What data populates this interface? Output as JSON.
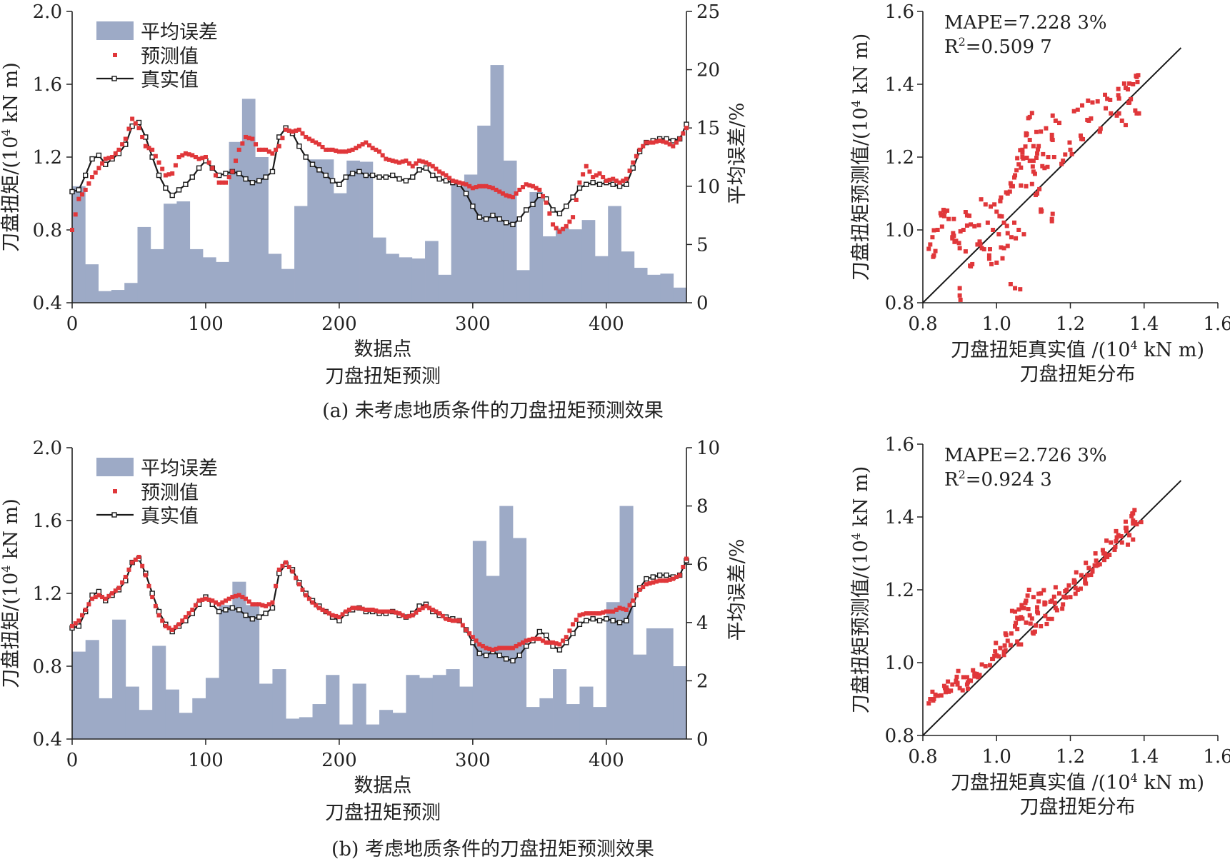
{
  "figure": {
    "caption_a": "(a) 未考虑地质条件的刀盘扭矩预测效果",
    "caption_b": "(b) 考虑地质条件的刀盘扭矩预测效果"
  },
  "colors": {
    "bar": "#9daac6",
    "pred": "#e0373a",
    "true_line": "#1a1a1a",
    "axis": "#222222"
  },
  "chart_data": [
    {
      "panel": "a-left",
      "type": "bar+line+scatter",
      "subtitle": "刀盘扭矩预测",
      "xlabel": "数据点",
      "ylabel": "刀盘扭矩/(10⁴ kN m)",
      "y2label": "平均误差/%",
      "xlim": [
        0,
        460
      ],
      "ylim": [
        0.4,
        2.0
      ],
      "y2lim": [
        0,
        25
      ],
      "xticks": [
        "0",
        "100",
        "200",
        "300",
        "400"
      ],
      "yticks": [
        "0.4",
        "0.8",
        "1.2",
        "1.6",
        "2.0"
      ],
      "y2ticks": [
        "0",
        "5",
        "10",
        "15",
        "20",
        "25"
      ],
      "legend": [
        "平均误差",
        "预测值",
        "真实值"
      ],
      "legend_position": "top-left",
      "bars_error_pct": [
        10,
        3.3,
        1,
        1.1,
        1.7,
        6.5,
        4.6,
        8.5,
        8.7,
        4.6,
        3.9,
        3.5,
        13.8,
        17.5,
        12.5,
        4.2,
        2.9,
        8.3,
        12.3,
        12.3,
        9.4,
        12.2,
        12.1,
        5.6,
        4.2,
        3.9,
        3.8,
        5.3,
        2.4,
        10.2,
        11,
        15.2,
        20.4,
        12.2,
        2.8,
        9.5,
        5.7,
        6.4,
        6.3,
        7.1,
        4,
        8.3,
        4.4,
        3,
        2.4,
        2.5,
        1.3
      ],
      "x": [
        0,
        5,
        10,
        15,
        20,
        25,
        30,
        35,
        40,
        45,
        50,
        55,
        60,
        65,
        70,
        75,
        80,
        85,
        90,
        95,
        100,
        105,
        110,
        115,
        120,
        125,
        130,
        135,
        140,
        145,
        150,
        155,
        160,
        165,
        170,
        175,
        180,
        185,
        190,
        195,
        200,
        205,
        210,
        215,
        220,
        225,
        230,
        235,
        240,
        245,
        250,
        255,
        260,
        265,
        270,
        275,
        280,
        285,
        290,
        295,
        300,
        305,
        310,
        315,
        320,
        325,
        330,
        335,
        340,
        345,
        350,
        355,
        360,
        365,
        370,
        375,
        380,
        385,
        390,
        395,
        400,
        405,
        410,
        415,
        420,
        425,
        430,
        435,
        440,
        445,
        450,
        455,
        460
      ],
      "true": [
        1.01,
        1.02,
        1.1,
        1.19,
        1.21,
        1.16,
        1.19,
        1.22,
        1.27,
        1.37,
        1.39,
        1.31,
        1.2,
        1.1,
        1.03,
        0.99,
        1.02,
        1.05,
        1.09,
        1.14,
        1.18,
        1.14,
        1.1,
        1.11,
        1.12,
        1.11,
        1.08,
        1.06,
        1.07,
        1.09,
        1.12,
        1.31,
        1.36,
        1.33,
        1.26,
        1.2,
        1.16,
        1.13,
        1.1,
        1.07,
        1.05,
        1.09,
        1.11,
        1.12,
        1.1,
        1.1,
        1.09,
        1.09,
        1.1,
        1.08,
        1.07,
        1.09,
        1.13,
        1.14,
        1.1,
        1.08,
        1.07,
        1.06,
        1.05,
        1.0,
        0.93,
        0.87,
        0.86,
        0.88,
        0.86,
        0.84,
        0.83,
        0.86,
        0.91,
        0.94,
        0.99,
        0.97,
        0.91,
        0.89,
        0.93,
        0.98,
        1.03,
        1.05,
        1.06,
        1.05,
        1.06,
        1.05,
        1.04,
        1.05,
        1.14,
        1.23,
        1.28,
        1.29,
        1.3,
        1.3,
        1.29,
        1.3,
        1.38
      ],
      "pred": [
        0.8,
        0.97,
        1.02,
        1.09,
        1.14,
        1.19,
        1.2,
        1.24,
        1.3,
        1.41,
        1.36,
        1.26,
        1.24,
        1.17,
        1.1,
        1.11,
        1.2,
        1.22,
        1.21,
        1.19,
        1.2,
        1.14,
        1.06,
        1.06,
        1.12,
        1.24,
        1.31,
        1.3,
        1.24,
        1.24,
        1.22,
        1.26,
        1.35,
        1.34,
        1.35,
        1.31,
        1.29,
        1.27,
        1.24,
        1.24,
        1.23,
        1.23,
        1.24,
        1.26,
        1.28,
        1.25,
        1.23,
        1.19,
        1.18,
        1.17,
        1.18,
        1.15,
        1.18,
        1.17,
        1.15,
        1.12,
        1.1,
        1.07,
        1.06,
        1.05,
        1.03,
        1.04,
        1.04,
        1.03,
        1.01,
        0.99,
        0.98,
        1.02,
        1.05,
        1.04,
        1.02,
        0.95,
        0.83,
        0.79,
        0.82,
        0.87,
        1.06,
        1.15,
        1.09,
        1.11,
        1.07,
        1.08,
        1.06,
        1.08,
        1.17,
        1.24,
        1.28,
        1.28,
        1.29,
        1.28,
        1.26,
        1.3,
        1.36
      ]
    },
    {
      "panel": "a-right",
      "type": "scatter",
      "subtitle": "刀盘扭矩分布",
      "xlabel": "刀盘扭矩真实值 /(10⁴ kN m)",
      "ylabel": "刀盘扭矩预测值/(10⁴ kN m)",
      "xlim": [
        0.8,
        1.6
      ],
      "ylim": [
        0.8,
        1.6
      ],
      "xticks": [
        "0.8",
        "1.0",
        "1.2",
        "1.4",
        "1.6"
      ],
      "yticks": [
        "0.8",
        "1.0",
        "1.2",
        "1.4",
        "1.6"
      ],
      "mape": "MAPE=7.228 3%",
      "r2_prefix": "R",
      "r2_sup": "2",
      "r2_value": "=0.509 7",
      "reference_line": [
        [
          0.8,
          0.8
        ],
        [
          1.5,
          1.5
        ]
      ],
      "points": [
        [
          0.82,
          0.96
        ],
        [
          0.83,
          0.93
        ],
        [
          0.84,
          1.0
        ],
        [
          0.85,
          1.04
        ],
        [
          0.86,
          1.05
        ],
        [
          0.87,
          1.03
        ],
        [
          0.88,
          0.98
        ],
        [
          0.89,
          0.97
        ],
        [
          0.9,
          0.95
        ],
        [
          0.9,
          0.82
        ],
        [
          0.91,
          1.0
        ],
        [
          0.92,
          1.04
        ],
        [
          0.93,
          0.9
        ],
        [
          0.94,
          1.01
        ],
        [
          0.95,
          0.96
        ],
        [
          0.96,
          0.95
        ],
        [
          0.97,
          1.07
        ],
        [
          0.98,
          0.93
        ],
        [
          1.0,
          1.05
        ],
        [
          1.0,
          0.91
        ],
        [
          1.01,
          1.08
        ],
        [
          1.02,
          0.95
        ],
        [
          1.03,
          1.1
        ],
        [
          1.04,
          1.12
        ],
        [
          1.04,
          0.98
        ],
        [
          1.05,
          1.15
        ],
        [
          1.06,
          1.18
        ],
        [
          1.06,
          1.0
        ],
        [
          1.07,
          1.2
        ],
        [
          1.07,
          1.22
        ],
        [
          1.08,
          1.12
        ],
        [
          1.08,
          1.26
        ],
        [
          1.09,
          1.19
        ],
        [
          1.09,
          1.31
        ],
        [
          1.1,
          1.16
        ],
        [
          1.1,
          1.23
        ],
        [
          1.11,
          1.21
        ],
        [
          1.11,
          1.1
        ],
        [
          1.12,
          1.27
        ],
        [
          1.12,
          1.05
        ],
        [
          1.13,
          1.17
        ],
        [
          1.14,
          1.2
        ],
        [
          1.15,
          1.25
        ],
        [
          1.16,
          1.3
        ],
        [
          1.18,
          1.19
        ],
        [
          1.2,
          1.22
        ],
        [
          1.22,
          1.33
        ],
        [
          1.23,
          1.25
        ],
        [
          1.25,
          1.3
        ],
        [
          1.26,
          1.35
        ],
        [
          1.28,
          1.27
        ],
        [
          1.3,
          1.36
        ],
        [
          1.31,
          1.32
        ],
        [
          1.33,
          1.37
        ],
        [
          1.34,
          1.3
        ],
        [
          1.35,
          1.39
        ],
        [
          1.36,
          1.35
        ],
        [
          1.37,
          1.4
        ],
        [
          1.38,
          1.42
        ],
        [
          1.38,
          1.32
        ],
        [
          1.05,
          0.84
        ],
        [
          1.15,
          1.03
        ],
        [
          1.02,
          1.02
        ],
        [
          0.99,
          1.0
        ]
      ]
    },
    {
      "panel": "b-left",
      "type": "bar+line+scatter",
      "subtitle": "刀盘扭矩预测",
      "xlabel": "数据点",
      "ylabel": "刀盘扭矩/(10⁴ kN m)",
      "y2label": "平均误差/%",
      "xlim": [
        0,
        460
      ],
      "ylim": [
        0.4,
        2.0
      ],
      "y2lim": [
        0,
        10
      ],
      "xticks": [
        "0",
        "100",
        "200",
        "300",
        "400"
      ],
      "yticks": [
        "0.4",
        "0.8",
        "1.2",
        "1.6",
        "2.0"
      ],
      "y2ticks": [
        "0",
        "2",
        "4",
        "6",
        "8",
        "10"
      ],
      "legend": [
        "平均误差",
        "预测值",
        "真实值"
      ],
      "legend_position": "top-left",
      "bars_error_pct": [
        3,
        3.4,
        1.4,
        4.1,
        1.8,
        1,
        3.2,
        1.7,
        0.9,
        1.4,
        2.1,
        4.6,
        5.4,
        4.6,
        1.9,
        2.4,
        0.7,
        0.75,
        1.2,
        2.2,
        0.5,
        1.9,
        0.5,
        1,
        0.9,
        2.2,
        2.1,
        2.2,
        2.4,
        1.8,
        6.8,
        5.6,
        8,
        6.9,
        1.1,
        1.4,
        2.4,
        1.2,
        1.8,
        1.1,
        4.7,
        8,
        2.9,
        3.8,
        3.8,
        2.5
      ],
      "x": [
        0,
        5,
        10,
        15,
        20,
        25,
        30,
        35,
        40,
        45,
        50,
        55,
        60,
        65,
        70,
        75,
        80,
        85,
        90,
        95,
        100,
        105,
        110,
        115,
        120,
        125,
        130,
        135,
        140,
        145,
        150,
        155,
        160,
        165,
        170,
        175,
        180,
        185,
        190,
        195,
        200,
        205,
        210,
        215,
        220,
        225,
        230,
        235,
        240,
        245,
        250,
        255,
        260,
        265,
        270,
        275,
        280,
        285,
        290,
        295,
        300,
        305,
        310,
        315,
        320,
        325,
        330,
        335,
        340,
        345,
        350,
        355,
        360,
        365,
        370,
        375,
        380,
        385,
        390,
        395,
        400,
        405,
        410,
        415,
        420,
        425,
        430,
        435,
        440,
        445,
        450,
        455,
        460
      ],
      "true": [
        1.01,
        1.02,
        1.1,
        1.19,
        1.21,
        1.16,
        1.19,
        1.22,
        1.27,
        1.37,
        1.39,
        1.31,
        1.2,
        1.1,
        1.03,
        0.99,
        1.02,
        1.05,
        1.09,
        1.14,
        1.18,
        1.14,
        1.1,
        1.11,
        1.12,
        1.11,
        1.08,
        1.06,
        1.07,
        1.09,
        1.12,
        1.31,
        1.36,
        1.33,
        1.26,
        1.2,
        1.16,
        1.13,
        1.1,
        1.07,
        1.05,
        1.09,
        1.11,
        1.12,
        1.1,
        1.1,
        1.09,
        1.09,
        1.1,
        1.08,
        1.07,
        1.09,
        1.13,
        1.14,
        1.1,
        1.08,
        1.07,
        1.06,
        1.05,
        1.0,
        0.93,
        0.87,
        0.86,
        0.88,
        0.86,
        0.84,
        0.83,
        0.86,
        0.91,
        0.94,
        0.99,
        0.97,
        0.91,
        0.89,
        0.93,
        0.98,
        1.03,
        1.05,
        1.06,
        1.05,
        1.06,
        1.05,
        1.04,
        1.05,
        1.14,
        1.23,
        1.28,
        1.29,
        1.3,
        1.3,
        1.29,
        1.3,
        1.38
      ],
      "pred": [
        1.02,
        1.05,
        1.11,
        1.17,
        1.19,
        1.17,
        1.2,
        1.23,
        1.29,
        1.37,
        1.4,
        1.3,
        1.18,
        1.08,
        1.02,
        1.0,
        1.03,
        1.07,
        1.11,
        1.16,
        1.17,
        1.16,
        1.14,
        1.16,
        1.18,
        1.19,
        1.17,
        1.14,
        1.14,
        1.13,
        1.15,
        1.33,
        1.37,
        1.32,
        1.25,
        1.19,
        1.15,
        1.12,
        1.1,
        1.08,
        1.07,
        1.1,
        1.12,
        1.12,
        1.11,
        1.11,
        1.1,
        1.1,
        1.1,
        1.09,
        1.07,
        1.08,
        1.11,
        1.13,
        1.11,
        1.09,
        1.06,
        1.05,
        1.05,
        1.0,
        0.96,
        0.92,
        0.9,
        0.89,
        0.9,
        0.9,
        0.9,
        0.92,
        0.94,
        0.95,
        0.95,
        0.93,
        0.93,
        0.92,
        0.96,
        1.03,
        1.08,
        1.09,
        1.09,
        1.09,
        1.1,
        1.1,
        1.12,
        1.11,
        1.16,
        1.22,
        1.25,
        1.26,
        1.27,
        1.27,
        1.28,
        1.3,
        1.39
      ]
    },
    {
      "panel": "b-right",
      "type": "scatter",
      "subtitle": "刀盘扭矩分布",
      "xlabel": "刀盘扭矩真实值 /(10⁴ kN m)",
      "ylabel": "刀盘扭矩预测值/(10⁴ kN m)",
      "xlim": [
        0.8,
        1.6
      ],
      "ylim": [
        0.8,
        1.6
      ],
      "xticks": [
        "0.8",
        "1.0",
        "1.2",
        "1.4",
        "1.6"
      ],
      "yticks": [
        "0.8",
        "1.0",
        "1.2",
        "1.4",
        "1.6"
      ],
      "mape": "MAPE=2.726 3%",
      "r2_prefix": "R",
      "r2_sup": "2",
      "r2_value": "=0.924 3",
      "reference_line": [
        [
          0.8,
          0.8
        ],
        [
          1.5,
          1.5
        ]
      ],
      "points": [
        [
          0.82,
          0.9
        ],
        [
          0.83,
          0.9
        ],
        [
          0.85,
          0.91
        ],
        [
          0.86,
          0.93
        ],
        [
          0.87,
          0.92
        ],
        [
          0.88,
          0.94
        ],
        [
          0.89,
          0.95
        ],
        [
          0.9,
          0.93
        ],
        [
          0.91,
          0.96
        ],
        [
          0.92,
          0.94
        ],
        [
          0.93,
          0.95
        ],
        [
          0.94,
          0.97
        ],
        [
          0.95,
          0.96
        ],
        [
          0.97,
          0.99
        ],
        [
          0.99,
          1.01
        ],
        [
          1.0,
          1.02
        ],
        [
          1.01,
          1.04
        ],
        [
          1.02,
          1.03
        ],
        [
          1.03,
          1.06
        ],
        [
          1.04,
          1.08
        ],
        [
          1.05,
          1.1
        ],
        [
          1.05,
          1.14
        ],
        [
          1.06,
          1.12
        ],
        [
          1.07,
          1.15
        ],
        [
          1.08,
          1.11
        ],
        [
          1.08,
          1.17
        ],
        [
          1.09,
          1.13
        ],
        [
          1.1,
          1.18
        ],
        [
          1.11,
          1.14
        ],
        [
          1.12,
          1.19
        ],
        [
          1.12,
          1.1
        ],
        [
          1.13,
          1.16
        ],
        [
          1.14,
          1.12
        ],
        [
          1.15,
          1.17
        ],
        [
          1.16,
          1.15
        ],
        [
          1.17,
          1.19
        ],
        [
          1.18,
          1.16
        ],
        [
          1.19,
          1.2
        ],
        [
          1.2,
          1.18
        ],
        [
          1.21,
          1.22
        ],
        [
          1.22,
          1.2
        ],
        [
          1.23,
          1.24
        ],
        [
          1.24,
          1.22
        ],
        [
          1.25,
          1.26
        ],
        [
          1.26,
          1.25
        ],
        [
          1.27,
          1.28
        ],
        [
          1.28,
          1.27
        ],
        [
          1.29,
          1.3
        ],
        [
          1.3,
          1.29
        ],
        [
          1.31,
          1.33
        ],
        [
          1.32,
          1.31
        ],
        [
          1.33,
          1.35
        ],
        [
          1.34,
          1.33
        ],
        [
          1.35,
          1.37
        ],
        [
          1.36,
          1.35
        ],
        [
          1.37,
          1.39
        ],
        [
          1.37,
          1.41
        ],
        [
          1.38,
          1.38
        ],
        [
          1.1,
          1.08
        ],
        [
          1.06,
          1.05
        ]
      ]
    }
  ]
}
